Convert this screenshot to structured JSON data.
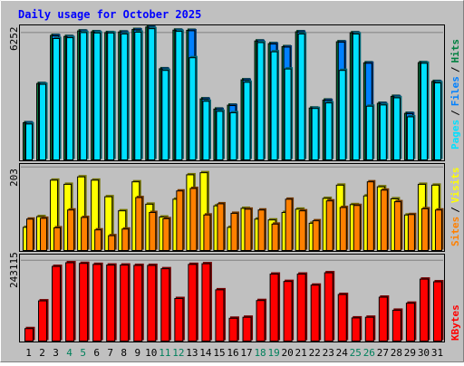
{
  "chart_data": [
    {
      "type": "bar",
      "title": "Daily usage for October 2025",
      "panel": "pages-files-hits",
      "y_tick_label": "6252",
      "ylim": [
        0,
        6600
      ],
      "grid": true,
      "categories": [
        "1",
        "2",
        "3",
        "4",
        "5",
        "6",
        "7",
        "8",
        "9",
        "10",
        "11",
        "12",
        "13",
        "14",
        "15",
        "16",
        "17",
        "18",
        "19",
        "20",
        "21",
        "22",
        "23",
        "24",
        "25",
        "26",
        "27",
        "28",
        "29",
        "30",
        "31"
      ],
      "weekend_days": [
        "4",
        "5",
        "11",
        "12",
        "18",
        "19",
        "25",
        "26"
      ],
      "series": [
        {
          "name": "Hits",
          "color": "#008040",
          "values": [
            1860,
            3780,
            6130,
            6080,
            6350,
            6310,
            6270,
            6300,
            6420,
            6540,
            4500,
            6390,
            6380,
            3030,
            2530,
            2720,
            3960,
            5860,
            5730,
            5580,
            6310,
            2580,
            2970,
            5820,
            6260,
            4790,
            2810,
            3150,
            2320,
            4800,
            3880
          ]
        },
        {
          "name": "Files",
          "color": "#0080ff",
          "values": [
            1850,
            3760,
            6110,
            6060,
            6330,
            6290,
            6250,
            6280,
            6400,
            6520,
            4480,
            6370,
            6360,
            3010,
            2510,
            2700,
            3940,
            5840,
            5710,
            5560,
            6290,
            2560,
            2950,
            5800,
            6240,
            4770,
            2790,
            3130,
            2300,
            4780,
            3860
          ]
        },
        {
          "name": "Pages",
          "color": "#00e0ff",
          "values": [
            1800,
            3740,
            5980,
            6020,
            6270,
            6250,
            6250,
            6200,
            6290,
            6460,
            4420,
            6330,
            5040,
            2910,
            2420,
            2350,
            3840,
            5780,
            5330,
            4490,
            6200,
            2560,
            2830,
            4420,
            6200,
            2670,
            2730,
            3080,
            2150,
            4770,
            3810
          ]
        }
      ]
    },
    {
      "type": "bar",
      "panel": "sites-visits",
      "y_tick_label": "203",
      "ylim": [
        0,
        210
      ],
      "grid": true,
      "categories": [
        "1",
        "2",
        "3",
        "4",
        "5",
        "6",
        "7",
        "8",
        "9",
        "10",
        "11",
        "12",
        "13",
        "14",
        "15",
        "16",
        "17",
        "18",
        "19",
        "20",
        "21",
        "22",
        "23",
        "24",
        "25",
        "26",
        "27",
        "28",
        "29",
        "30",
        "31"
      ],
      "series": [
        {
          "name": "Visits",
          "color": "#ffff00",
          "values": [
            58,
            84,
            172,
            162,
            180,
            172,
            132,
            98,
            168,
            114,
            83,
            126,
            185,
            190,
            110,
            58,
            104,
            78,
            76,
            94,
            102,
            68,
            128,
            160,
            113,
            134,
            156,
            127,
            88,
            162,
            160
          ]
        },
        {
          "name": "Sites",
          "color": "#ff8000",
          "values": [
            78,
            80,
            57,
            100,
            82,
            52,
            38,
            54,
            130,
            94,
            79,
            146,
            152,
            88,
            115,
            92,
            102,
            100,
            66,
            126,
            98,
            74,
            122,
            106,
            111,
            168,
            148,
            120,
            89,
            103,
            100
          ]
        }
      ]
    },
    {
      "type": "bar",
      "panel": "kbytes",
      "y_tick_label": "243115",
      "ylim": [
        0,
        260000
      ],
      "grid": true,
      "categories": [
        "1",
        "2",
        "3",
        "4",
        "5",
        "6",
        "7",
        "8",
        "9",
        "10",
        "11",
        "12",
        "13",
        "14",
        "15",
        "16",
        "17",
        "18",
        "19",
        "20",
        "21",
        "22",
        "23",
        "24",
        "25",
        "26",
        "27",
        "28",
        "29",
        "30",
        "31"
      ],
      "series": [
        {
          "name": "KBytes",
          "color": "#ff0000",
          "values": [
            40000,
            123000,
            226000,
            237000,
            235000,
            232000,
            230000,
            230000,
            229000,
            229000,
            219000,
            130000,
            232000,
            234000,
            156000,
            71000,
            74000,
            124000,
            203000,
            181000,
            203000,
            170000,
            207000,
            142000,
            72000,
            74000,
            134000,
            95000,
            116000,
            188000,
            180000
          ]
        }
      ]
    }
  ],
  "right_labels": {
    "pages": "Pages",
    "files": "Files",
    "hits": "Hits",
    "sites": "Sites",
    "visits": "Visits",
    "kbytes": "KBytes",
    "slash": "/"
  },
  "colors": {
    "background": "#c0c0c0",
    "title": "#0000ff",
    "weekday_label": "#000000",
    "weekend_label": "#00805c",
    "grid": "#808080"
  }
}
